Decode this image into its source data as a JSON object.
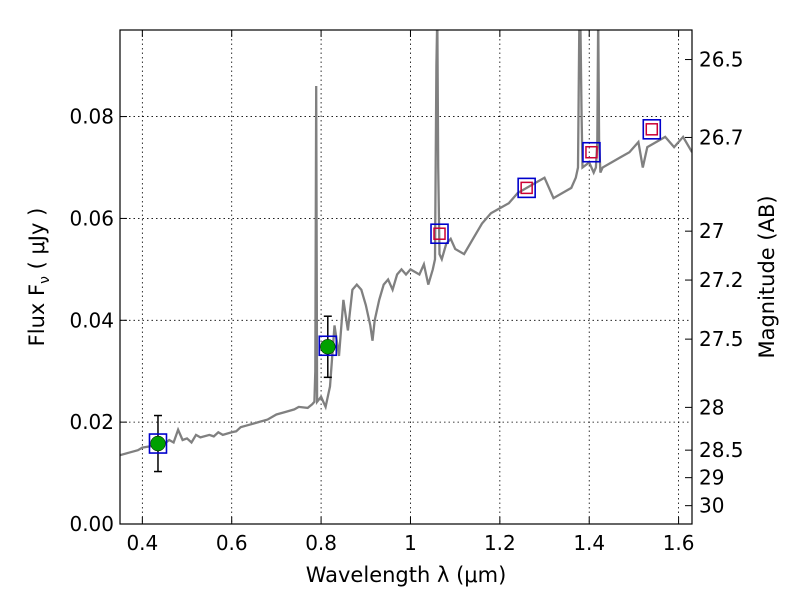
{
  "chart_data": {
    "type": "line",
    "xlabel": "Wavelength  λ (μm)",
    "ylabel": "Flux  F",
    "ylabel_sub": "ν",
    "ylabel_unit": " ( μJy )",
    "y2label": "Magnitude (AB)",
    "xlim": [
      0.35,
      1.63
    ],
    "ylim": [
      0.0,
      0.097
    ],
    "x_ticks": [
      0.4,
      0.6,
      0.8,
      1.0,
      1.2,
      1.4,
      1.6
    ],
    "x_tick_labels": [
      "0.4",
      "0.6",
      "0.8",
      "1",
      "1.2",
      "1.4",
      "1.6"
    ],
    "y_ticks": [
      0.0,
      0.02,
      0.04,
      0.06,
      0.08
    ],
    "y_tick_labels": [
      "0.00",
      "0.02",
      "0.04",
      "0.06",
      "0.08"
    ],
    "y2_ticks": [
      {
        "label": "26.5",
        "flux": 0.0912
      },
      {
        "label": "26.7",
        "flux": 0.0759
      },
      {
        "label": "27",
        "flux": 0.0575
      },
      {
        "label": "27.2",
        "flux": 0.0479
      },
      {
        "label": "27.5",
        "flux": 0.0363
      },
      {
        "label": "28",
        "flux": 0.0229
      },
      {
        "label": "28.5",
        "flux": 0.0145
      },
      {
        "label": "29",
        "flux": 0.0091
      },
      {
        "label": "30",
        "flux": 0.0036
      }
    ],
    "grid": true,
    "series": [
      {
        "name": "model spectrum",
        "color": "#808080",
        "x": [
          0.35,
          0.37,
          0.39,
          0.4,
          0.42,
          0.43,
          0.45,
          0.46,
          0.47,
          0.48,
          0.49,
          0.5,
          0.51,
          0.52,
          0.53,
          0.55,
          0.56,
          0.57,
          0.58,
          0.6,
          0.61,
          0.62,
          0.64,
          0.66,
          0.68,
          0.7,
          0.72,
          0.74,
          0.75,
          0.77,
          0.78,
          0.785,
          0.787,
          0.789,
          0.791,
          0.8,
          0.805,
          0.81,
          0.82,
          0.83,
          0.84,
          0.85,
          0.86,
          0.87,
          0.88,
          0.89,
          0.9,
          0.91,
          0.915,
          0.92,
          0.93,
          0.94,
          0.95,
          0.96,
          0.97,
          0.98,
          0.99,
          1.0,
          1.02,
          1.03,
          1.04,
          1.05,
          1.055,
          1.058,
          1.06,
          1.062,
          1.065,
          1.07,
          1.08,
          1.09,
          1.1,
          1.12,
          1.14,
          1.16,
          1.18,
          1.2,
          1.22,
          1.24,
          1.26,
          1.28,
          1.3,
          1.32,
          1.34,
          1.36,
          1.37,
          1.375,
          1.378,
          1.38,
          1.383,
          1.385,
          1.4,
          1.41,
          1.415,
          1.418,
          1.42,
          1.422,
          1.425,
          1.43,
          1.45,
          1.47,
          1.49,
          1.5,
          1.51,
          1.52,
          1.53,
          1.55,
          1.57,
          1.59,
          1.61,
          1.63
        ],
        "y": [
          0.0135,
          0.014,
          0.0145,
          0.015,
          0.0153,
          0.0155,
          0.0158,
          0.0165,
          0.016,
          0.0185,
          0.0165,
          0.0168,
          0.016,
          0.0175,
          0.017,
          0.0175,
          0.0172,
          0.018,
          0.0175,
          0.018,
          0.0182,
          0.019,
          0.0195,
          0.02,
          0.0205,
          0.0215,
          0.022,
          0.0225,
          0.023,
          0.0228,
          0.0235,
          0.024,
          0.03,
          0.086,
          0.024,
          0.025,
          0.024,
          0.023,
          0.027,
          0.039,
          0.033,
          0.044,
          0.038,
          0.046,
          0.047,
          0.046,
          0.043,
          0.039,
          0.036,
          0.04,
          0.044,
          0.047,
          0.048,
          0.046,
          0.049,
          0.05,
          0.049,
          0.05,
          0.049,
          0.051,
          0.047,
          0.05,
          0.052,
          0.09,
          0.1,
          0.07,
          0.053,
          0.052,
          0.055,
          0.056,
          0.054,
          0.053,
          0.056,
          0.059,
          0.061,
          0.062,
          0.063,
          0.065,
          0.066,
          0.067,
          0.068,
          0.064,
          0.065,
          0.066,
          0.068,
          0.07,
          0.1,
          0.1,
          0.08,
          0.07,
          0.071,
          0.069,
          0.07,
          0.075,
          0.1,
          0.075,
          0.069,
          0.07,
          0.071,
          0.072,
          0.073,
          0.074,
          0.075,
          0.07,
          0.074,
          0.075,
          0.076,
          0.074,
          0.076,
          0.073
        ]
      }
    ],
    "measurements": [
      {
        "name": "photometry",
        "color": "#00a000",
        "x": [
          0.435,
          0.815
        ],
        "y": [
          0.0158,
          0.0348
        ],
        "yerr": [
          0.0055,
          0.006
        ]
      }
    ],
    "model_points": [
      {
        "name": "model magnitudes",
        "outer_color": "#0000cc",
        "inner_color": "#cc0033",
        "x": [
          0.435,
          0.815,
          1.065,
          1.26,
          1.405,
          1.54
        ],
        "y": [
          0.0158,
          0.035,
          0.057,
          0.066,
          0.073,
          0.0775
        ]
      }
    ]
  }
}
